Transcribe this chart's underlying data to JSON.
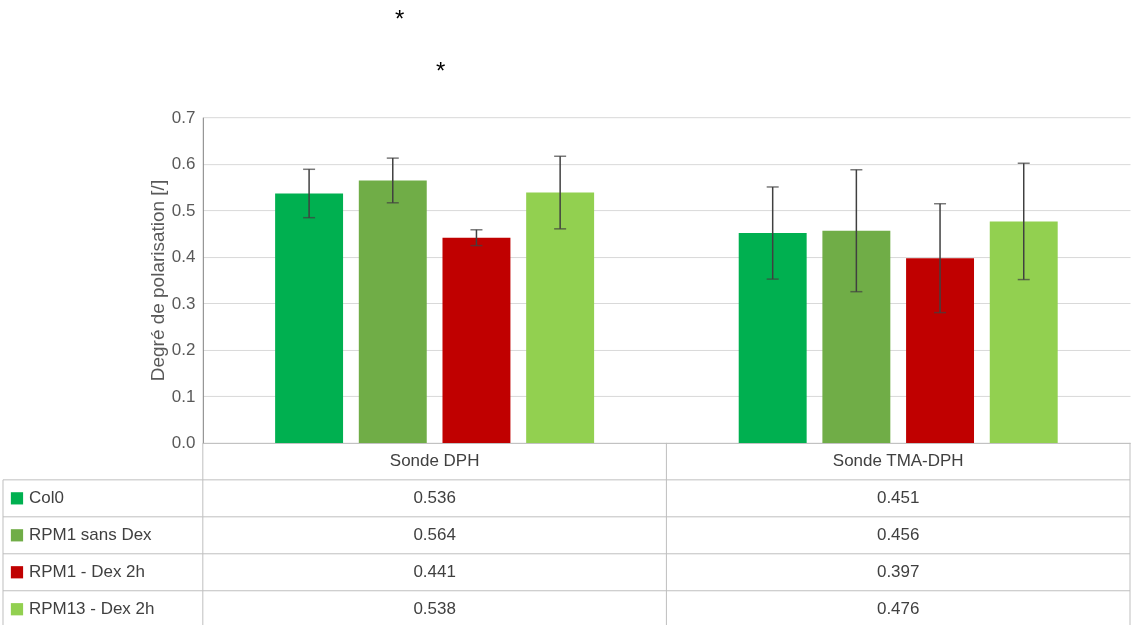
{
  "chart_data": {
    "type": "bar",
    "ylabel": "Degré de polarisation [/]",
    "categories": [
      "Sonde DPH",
      "Sonde TMA-DPH"
    ],
    "series": [
      {
        "name": "Col0",
        "color": "#00b050",
        "values": [
          0.536,
          0.451
        ],
        "errors": [
          0.052,
          0.099
        ]
      },
      {
        "name": "RPM1 sans Dex",
        "color": "#70ad47",
        "values": [
          0.564,
          0.456
        ],
        "errors": [
          0.048,
          0.131
        ]
      },
      {
        "name": "RPM1 - Dex 2h",
        "color": "#c00000",
        "values": [
          0.441,
          0.397
        ],
        "errors": [
          0.017,
          0.117
        ]
      },
      {
        "name": "RPM13 - Dex 2h",
        "color": "#92d050",
        "values": [
          0.538,
          0.476
        ],
        "errors": [
          0.078,
          0.125
        ]
      }
    ],
    "ylim": [
      0,
      0.7
    ],
    "yticks": [
      {
        "value": 0,
        "label": "0.0"
      },
      0.1,
      0.2,
      0.3,
      0.4,
      0.5,
      0.6,
      0.7
    ],
    "grid": "y",
    "data_labels": true,
    "legend": "bottom",
    "annotations": [
      "*",
      "*"
    ]
  }
}
